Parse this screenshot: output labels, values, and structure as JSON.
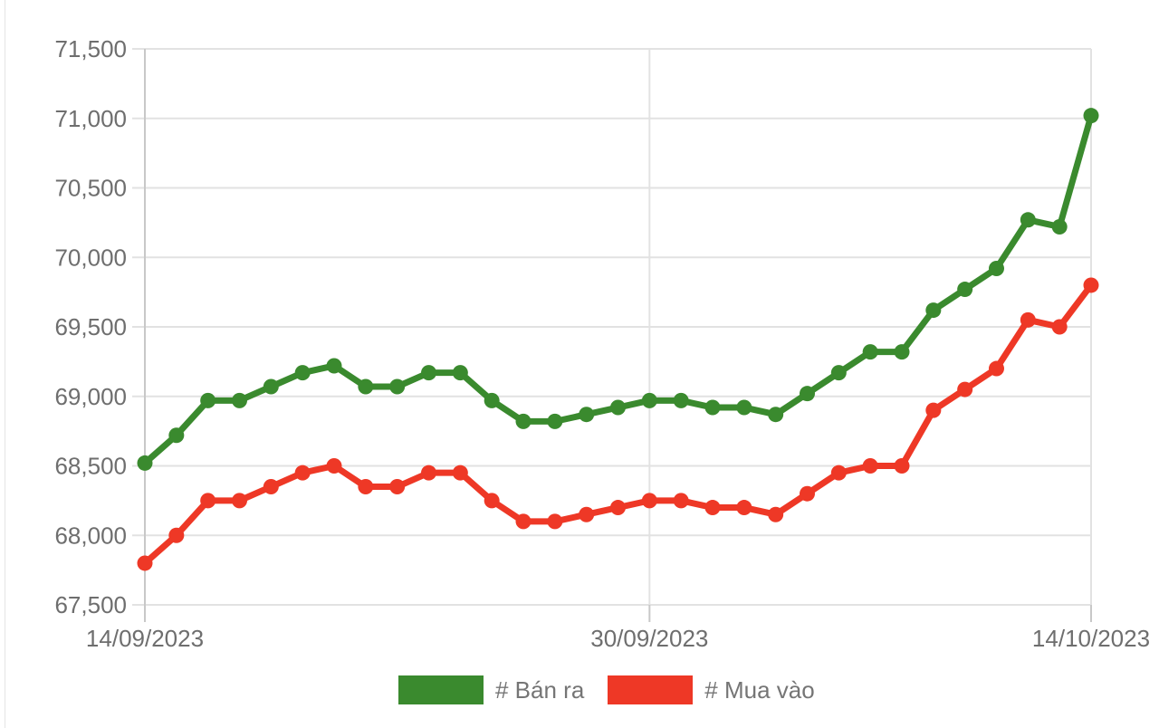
{
  "chart_data": {
    "type": "line",
    "title": "",
    "xlabel": "",
    "ylabel": "",
    "n_points": 31,
    "ylim": [
      67500,
      71500
    ],
    "grid": true,
    "legend_position": "bottom",
    "grid_color": "#e2e2e2",
    "axis_color": "#c8c8c8",
    "axis_label_color": "#6e6e6e",
    "y_ticks": [
      {
        "value": 71500,
        "label": "71,500"
      },
      {
        "value": 71000,
        "label": "71,000"
      },
      {
        "value": 70500,
        "label": "70,500"
      },
      {
        "value": 70000,
        "label": "70,000"
      },
      {
        "value": 69500,
        "label": "69,500"
      },
      {
        "value": 69000,
        "label": "69,000"
      },
      {
        "value": 68500,
        "label": "68,500"
      },
      {
        "value": 68000,
        "label": "68,000"
      },
      {
        "value": 67500,
        "label": "67,500"
      }
    ],
    "x_ticks": [
      {
        "index": 0,
        "label": "14/09/2023"
      },
      {
        "index": 16,
        "label": "30/09/2023"
      },
      {
        "index": 30,
        "label": "14/10/2023"
      }
    ],
    "x_range_labels": [
      "14/09/2023",
      "30/09/2023",
      "14/10/2023"
    ],
    "series": [
      {
        "id": "ban-ra",
        "name": "# Bán ra",
        "color": "#3a8a2e",
        "values": [
          68520,
          68720,
          68970,
          68970,
          69070,
          69170,
          69220,
          69070,
          69070,
          69170,
          69170,
          68970,
          68820,
          68820,
          68870,
          68920,
          68970,
          68970,
          68920,
          68920,
          68870,
          69020,
          69170,
          69320,
          69320,
          69620,
          69770,
          69920,
          70270,
          70220,
          71020
        ]
      },
      {
        "id": "mua-vao",
        "name": "# Mua vào",
        "color": "#ee3826",
        "values": [
          67800,
          68000,
          68250,
          68250,
          68350,
          68450,
          68500,
          68350,
          68350,
          68450,
          68450,
          68250,
          68100,
          68100,
          68150,
          68200,
          68250,
          68250,
          68200,
          68200,
          68150,
          68300,
          68450,
          68500,
          68500,
          68900,
          69050,
          69200,
          69550,
          69500,
          69800
        ]
      }
    ]
  }
}
